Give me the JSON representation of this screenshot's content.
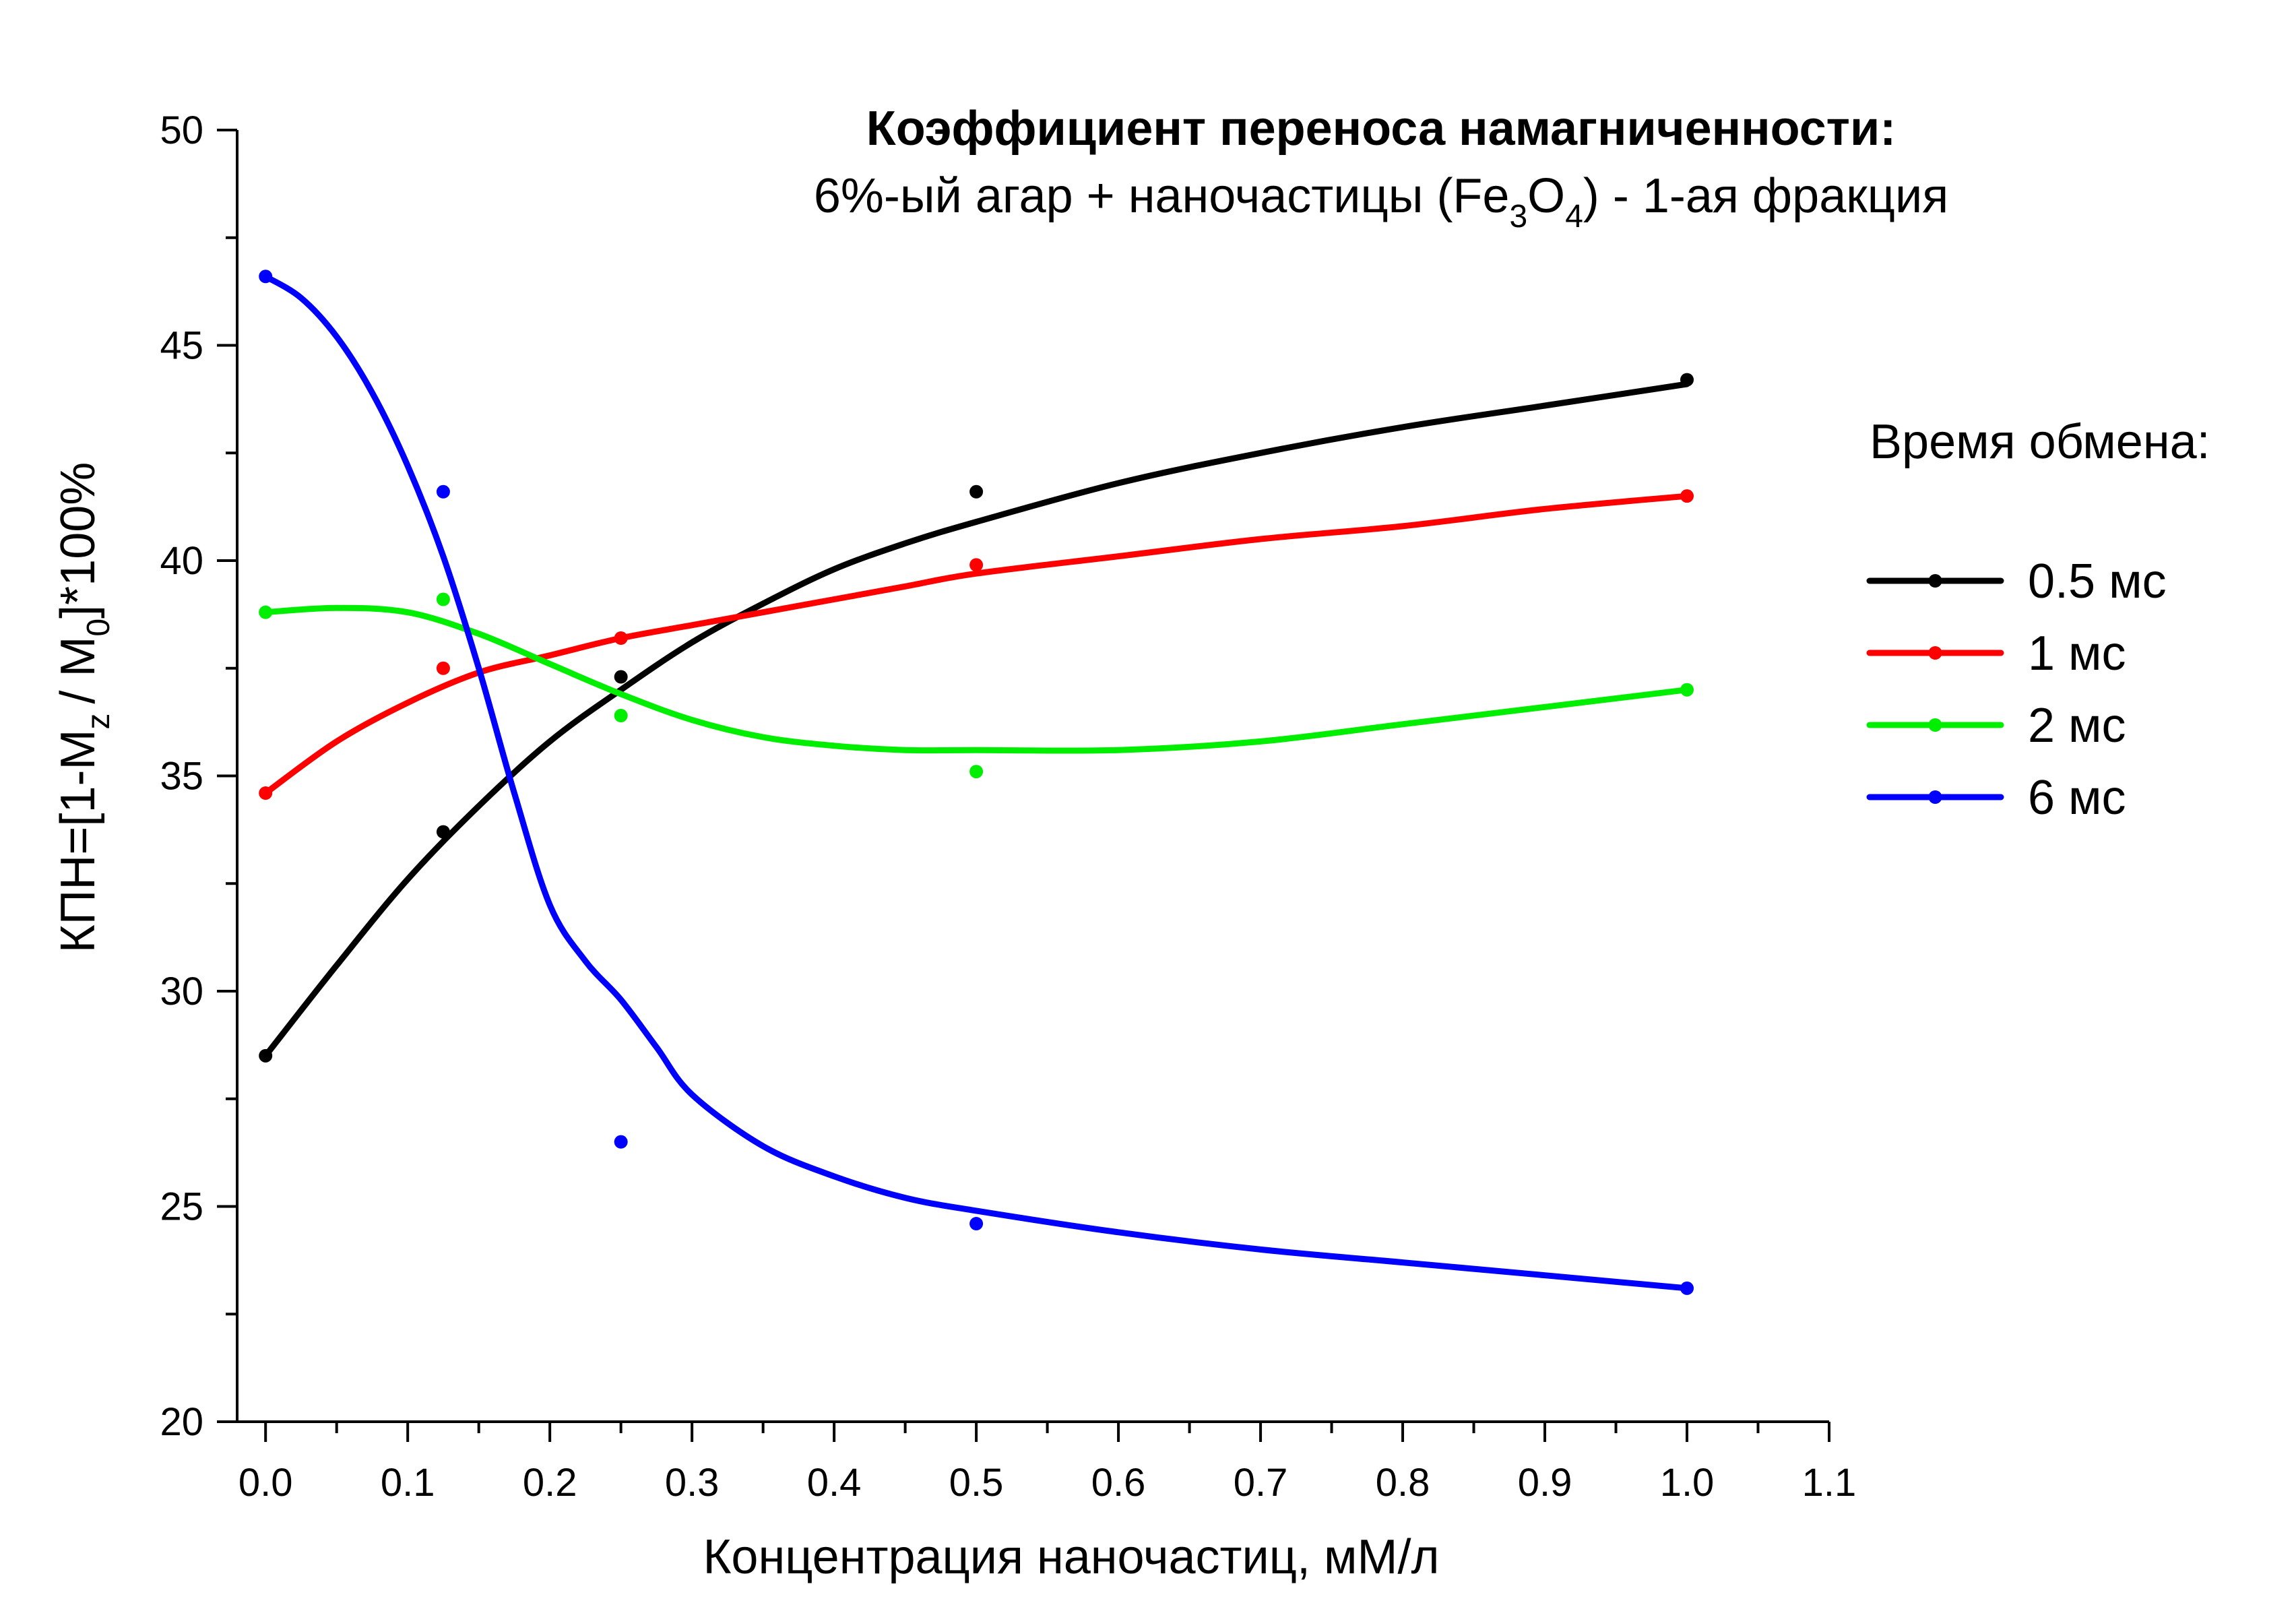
{
  "chart_data": {
    "type": "scatter",
    "title": "Коэффициент переноса намагниченности:",
    "subtitle": {
      "before": "6%-ый агар + наночастицы (Fe",
      "sub1": "3",
      "middle": "O",
      "sub2": "4",
      "after": ") - 1-ая фракция"
    },
    "xlabel": "Концентрация наночастиц, мМ/л",
    "ylabel": {
      "part1": "КПН=[1-M",
      "sub1": "z",
      "part2": "/ M",
      "sub2": "0",
      "part3": "]*100%"
    },
    "xlim": [
      -0.02,
      1.1
    ],
    "ylim": [
      20,
      50
    ],
    "x_ticks": [
      "0.0",
      "0.1",
      "0.2",
      "0.3",
      "0.4",
      "0.5",
      "0.6",
      "0.7",
      "0.8",
      "0.9",
      "1.0",
      "1.1"
    ],
    "y_ticks": [
      "20",
      "25",
      "30",
      "35",
      "40",
      "45",
      "50"
    ],
    "legend_title": "Время обмена:",
    "legend_position": "right",
    "grid": false,
    "series": [
      {
        "name": "0.5 мс",
        "color": "#000000",
        "x": [
          0,
          0.125,
          0.25,
          0.5,
          1.0
        ],
        "y": [
          28.5,
          33.7,
          37.3,
          41.6,
          44.2
        ],
        "fit": [
          [
            0,
            28.5
          ],
          [
            0.05,
            30.6
          ],
          [
            0.1,
            32.6
          ],
          [
            0.15,
            34.3
          ],
          [
            0.2,
            35.8
          ],
          [
            0.25,
            37.0
          ],
          [
            0.3,
            38.1
          ],
          [
            0.35,
            39.0
          ],
          [
            0.4,
            39.8
          ],
          [
            0.45,
            40.4
          ],
          [
            0.5,
            40.9
          ],
          [
            0.6,
            41.8
          ],
          [
            0.7,
            42.5
          ],
          [
            0.8,
            43.1
          ],
          [
            0.9,
            43.6
          ],
          [
            1.0,
            44.1
          ]
        ]
      },
      {
        "name": "1 мс",
        "color": "#ff0000",
        "x": [
          0,
          0.125,
          0.25,
          0.5,
          1.0
        ],
        "y": [
          34.6,
          37.5,
          38.2,
          39.9,
          41.5
        ],
        "fit": [
          [
            0,
            34.6
          ],
          [
            0.05,
            35.8
          ],
          [
            0.1,
            36.7
          ],
          [
            0.15,
            37.4
          ],
          [
            0.2,
            37.8
          ],
          [
            0.25,
            38.2
          ],
          [
            0.3,
            38.5
          ],
          [
            0.35,
            38.8
          ],
          [
            0.4,
            39.1
          ],
          [
            0.45,
            39.4
          ],
          [
            0.5,
            39.7
          ],
          [
            0.6,
            40.1
          ],
          [
            0.7,
            40.5
          ],
          [
            0.8,
            40.8
          ],
          [
            0.9,
            41.2
          ],
          [
            1.0,
            41.5
          ]
        ]
      },
      {
        "name": "2 мс",
        "color": "#00ee00",
        "x": [
          0,
          0.125,
          0.25,
          0.5,
          1.0
        ],
        "y": [
          38.8,
          39.1,
          36.4,
          35.1,
          37.0
        ],
        "fit": [
          [
            0,
            38.8
          ],
          [
            0.05,
            38.9
          ],
          [
            0.1,
            38.8
          ],
          [
            0.15,
            38.3
          ],
          [
            0.2,
            37.6
          ],
          [
            0.25,
            36.9
          ],
          [
            0.3,
            36.3
          ],
          [
            0.35,
            35.9
          ],
          [
            0.4,
            35.7
          ],
          [
            0.45,
            35.6
          ],
          [
            0.5,
            35.6
          ],
          [
            0.6,
            35.6
          ],
          [
            0.7,
            35.8
          ],
          [
            0.8,
            36.2
          ],
          [
            0.9,
            36.6
          ],
          [
            1.0,
            37.0
          ]
        ]
      },
      {
        "name": "6 мс",
        "color": "#0000ff",
        "x": [
          0,
          0.125,
          0.25,
          0.5,
          1.0
        ],
        "y": [
          46.6,
          41.6,
          26.5,
          24.6,
          23.1
        ],
        "fit": [
          [
            0,
            46.6
          ],
          [
            0.025,
            46.1
          ],
          [
            0.05,
            45.2
          ],
          [
            0.075,
            43.9
          ],
          [
            0.1,
            42.2
          ],
          [
            0.125,
            40.1
          ],
          [
            0.15,
            37.5
          ],
          [
            0.175,
            34.6
          ],
          [
            0.2,
            32.0
          ],
          [
            0.225,
            30.7
          ],
          [
            0.25,
            29.8
          ],
          [
            0.275,
            28.7
          ],
          [
            0.3,
            27.6
          ],
          [
            0.35,
            26.4
          ],
          [
            0.4,
            25.7
          ],
          [
            0.45,
            25.2
          ],
          [
            0.5,
            24.9
          ],
          [
            0.6,
            24.4
          ],
          [
            0.7,
            24.0
          ],
          [
            0.8,
            23.7
          ],
          [
            0.9,
            23.4
          ],
          [
            1.0,
            23.1
          ]
        ]
      }
    ]
  }
}
